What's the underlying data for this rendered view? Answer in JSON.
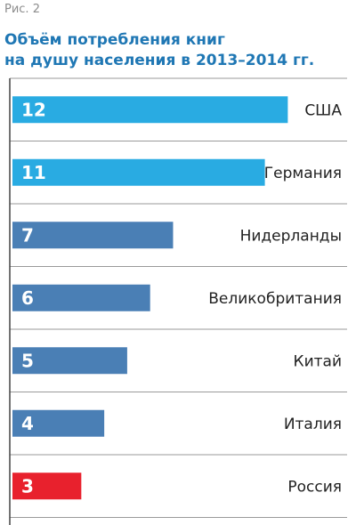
{
  "figure_label": "Рис. 2",
  "chart_data": {
    "type": "bar",
    "orientation": "horizontal",
    "title_lines": [
      "Объём потребления книг",
      "на душу населения в 2013–2014 гг."
    ],
    "categories": [
      "США",
      "Германия",
      "Нидерланды",
      "Великобритания",
      "Китай",
      "Италия",
      "Россия"
    ],
    "values": [
      12,
      11,
      7,
      6,
      5,
      4,
      3
    ],
    "bar_colors": [
      "#29abe2",
      "#29abe2",
      "#4a7fb5",
      "#4a7fb5",
      "#4a7fb5",
      "#4a7fb5",
      "#e8212d"
    ],
    "xlim": [
      0,
      12.8
    ],
    "grid": "horizontal separators",
    "value_labels": "inside bar, left"
  }
}
